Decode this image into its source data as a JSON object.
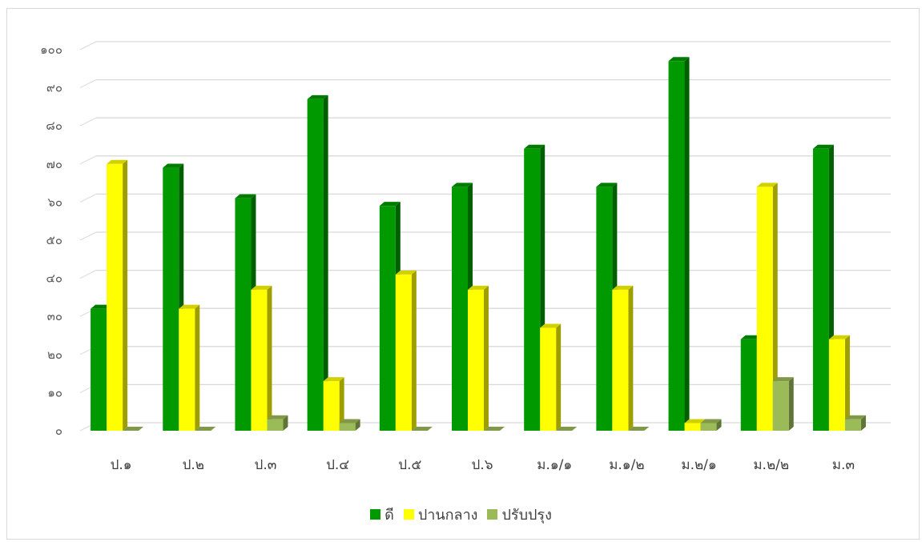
{
  "chart_data": {
    "type": "bar",
    "categories": [
      "ป.๑",
      "ป.๒",
      "ป.๓",
      "ป.๔",
      "ป.๕",
      "ป.๖",
      "ม.๑/๑",
      "ม.๑/๒",
      "ม.๒/๑",
      "ม.๒/๒",
      "ม.๓"
    ],
    "series": [
      {
        "name": "ดี",
        "color": "#009900",
        "values": [
          32,
          69,
          61,
          87,
          59,
          64,
          74,
          64,
          97,
          24,
          74
        ]
      },
      {
        "name": "ปานกลาง",
        "color": "#ffff00",
        "values": [
          70,
          32,
          37,
          13,
          41,
          37,
          27,
          37,
          2,
          64,
          24
        ]
      },
      {
        "name": "ปรับปรุง",
        "color": "#9bbb59",
        "values": [
          0,
          0,
          3,
          2,
          0,
          0,
          0,
          0,
          2,
          13,
          3
        ]
      }
    ],
    "yticks": [
      "๐",
      "๑๐",
      "๒๐",
      "๓๐",
      "๔๐",
      "๕๐",
      "๖๐",
      "๗๐",
      "๘๐",
      "๙๐",
      "๑๐๐"
    ],
    "ylim": [
      0,
      100
    ],
    "title": "",
    "xlabel": "",
    "ylabel": "",
    "grid": true,
    "legend_position": "bottom",
    "style": "3d-clustered-column"
  }
}
